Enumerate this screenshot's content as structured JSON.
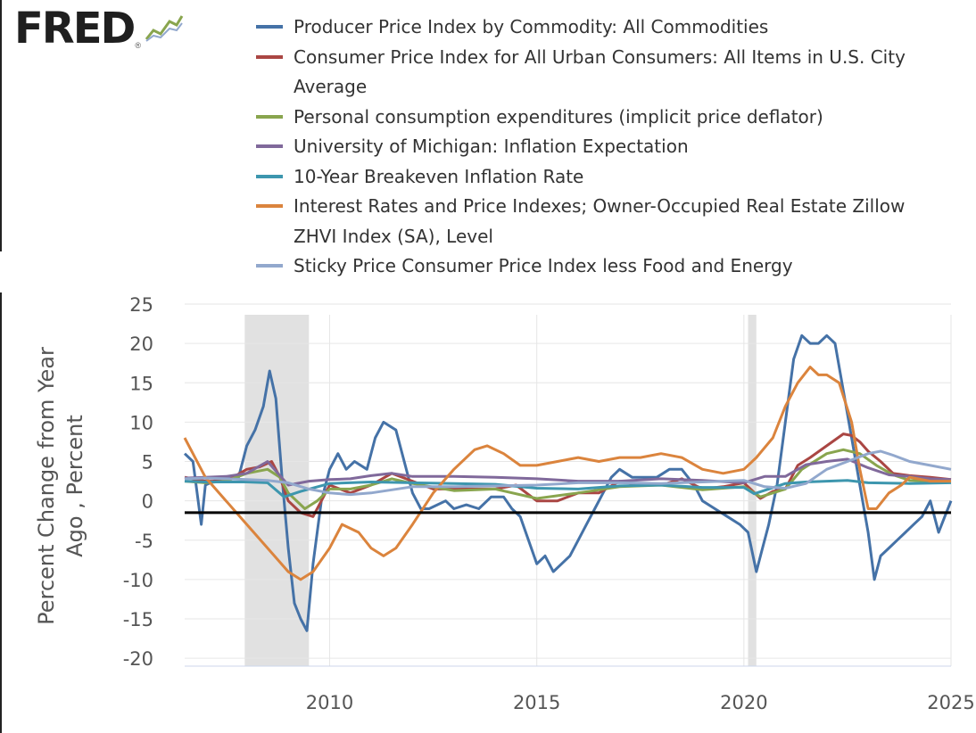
{
  "logo": {
    "text": "FRED",
    "registered": "®",
    "icon": "line-chart-icon"
  },
  "colors": {
    "ppi": "#4572a7",
    "cpi": "#aa4643",
    "pce": "#89a54e",
    "umich": "#80699b",
    "breakeven": "#3d96ae",
    "zillow": "#db843d",
    "sticky": "#92a8cd",
    "recession": "#e1e1e1",
    "grid": "#e6e6e6",
    "zero": "#000000"
  },
  "legend": [
    {
      "key": "ppi",
      "label": "Producer Price Index by Commodity: All Commodities"
    },
    {
      "key": "cpi",
      "label": "Consumer Price Index for All Urban Consumers: All Items in U.S. City Average"
    },
    {
      "key": "pce",
      "label": "Personal consumption expenditures (implicit price deflator)"
    },
    {
      "key": "umich",
      "label": "University of Michigan: Inflation Expectation"
    },
    {
      "key": "breakeven",
      "label": "10-Year Breakeven Inflation Rate"
    },
    {
      "key": "zillow",
      "label": "Interest Rates and Price Indexes; Owner-Occupied Real Estate Zillow ZHVI Index (SA), Level"
    },
    {
      "key": "sticky",
      "label": "Sticky Price Consumer Price Index less Food and Energy"
    }
  ],
  "chart_data": {
    "type": "line",
    "title": "",
    "xlabel": "",
    "ylabel": "Percent Change from Year Ago , Percent",
    "xlim": [
      2006.5,
      2025.0
    ],
    "ylim": [
      -21,
      25
    ],
    "xticks": [
      2010,
      2015,
      2020,
      2025
    ],
    "xtick_labels": [
      "2010",
      "2015",
      "2020",
      "2025"
    ],
    "yticks": [
      -20,
      -15,
      -10,
      -5,
      0,
      5,
      10,
      15,
      20,
      25
    ],
    "ytick_labels": [
      "-20",
      "-15",
      "-10",
      "-5",
      "0",
      "5",
      "10",
      "15",
      "20",
      "25"
    ],
    "grid": true,
    "reference_line_y": -1.5,
    "recessions": [
      [
        2007.95,
        2009.5
      ],
      [
        2020.1,
        2020.3
      ]
    ],
    "series": [
      {
        "key": "ppi",
        "name": "Producer Price Index by Commodity: All Commodities",
        "x": [
          2006.5,
          2006.7,
          2006.9,
          2007.0,
          2007.2,
          2007.5,
          2007.8,
          2008.0,
          2008.2,
          2008.4,
          2008.55,
          2008.7,
          2008.85,
          2009.0,
          2009.15,
          2009.3,
          2009.45,
          2009.6,
          2009.8,
          2010.0,
          2010.2,
          2010.4,
          2010.6,
          2010.9,
          2011.1,
          2011.3,
          2011.6,
          2011.8,
          2012.0,
          2012.2,
          2012.4,
          2012.6,
          2012.8,
          2013.0,
          2013.3,
          2013.6,
          2013.9,
          2014.2,
          2014.4,
          2014.6,
          2014.8,
          2015.0,
          2015.2,
          2015.4,
          2015.6,
          2015.8,
          2016.0,
          2016.2,
          2016.4,
          2016.6,
          2016.8,
          2017.0,
          2017.3,
          2017.6,
          2017.9,
          2018.2,
          2018.5,
          2018.8,
          2019.0,
          2019.3,
          2019.6,
          2019.9,
          2020.1,
          2020.3,
          2020.45,
          2020.6,
          2020.8,
          2021.0,
          2021.2,
          2021.4,
          2021.6,
          2021.8,
          2022.0,
          2022.2,
          2022.4,
          2022.6,
          2022.8,
          2023.0,
          2023.15,
          2023.3,
          2023.5,
          2023.7,
          2023.9,
          2024.1,
          2024.3,
          2024.5,
          2024.7,
          2024.85,
          2025.0
        ],
        "values": [
          6,
          5,
          -3,
          2,
          2.5,
          3,
          3,
          7,
          9,
          12,
          16.5,
          13,
          3,
          -6,
          -13,
          -15,
          -16.5,
          -8,
          0,
          4,
          6,
          4,
          5,
          4,
          8,
          10,
          9,
          5,
          1,
          -1,
          -1,
          -0.5,
          0,
          -1,
          -0.5,
          -1,
          0.5,
          0.5,
          -1,
          -2,
          -5,
          -8,
          -7,
          -9,
          -8,
          -7,
          -5,
          -3,
          -1,
          1,
          3,
          4,
          3,
          3,
          3,
          4,
          4,
          2,
          0,
          -1,
          -2,
          -3,
          -4,
          -9,
          -6,
          -3,
          2,
          10,
          18,
          21,
          20,
          20,
          21,
          20,
          14,
          8,
          2,
          -4,
          -10,
          -7,
          -6,
          -5,
          -4,
          -3,
          -2,
          0,
          -4,
          -2,
          0
        ]
      },
      {
        "key": "cpi",
        "name": "Consumer Price Index for All Urban Consumers",
        "x": [
          2006.5,
          2007.0,
          2007.5,
          2008.0,
          2008.3,
          2008.6,
          2008.8,
          2009.0,
          2009.3,
          2009.6,
          2009.8,
          2010.0,
          2010.5,
          2011.0,
          2011.5,
          2012.0,
          2012.5,
          2013.0,
          2013.5,
          2014.0,
          2014.5,
          2015.0,
          2015.5,
          2016.0,
          2016.5,
          2017.0,
          2017.5,
          2018.0,
          2018.5,
          2019.0,
          2019.5,
          2020.0,
          2020.4,
          2020.7,
          2021.0,
          2021.3,
          2021.6,
          2022.0,
          2022.4,
          2022.6,
          2022.8,
          2023.0,
          2023.3,
          2023.6,
          2024.0,
          2024.5,
          2025.0
        ],
        "values": [
          3,
          2.5,
          2.5,
          4,
          4.3,
          5,
          3,
          0,
          -1.5,
          -2,
          0,
          2,
          1,
          2,
          3.5,
          2.5,
          1.5,
          1.5,
          1.5,
          1.5,
          2,
          0,
          0,
          1,
          1,
          2.5,
          2,
          2,
          2.8,
          1.5,
          1.8,
          2.3,
          0.3,
          1.2,
          1.5,
          4.5,
          5.5,
          7,
          8.5,
          8.3,
          7.5,
          6.3,
          5,
          3.5,
          3.2,
          3,
          2.7
        ]
      },
      {
        "key": "pce",
        "name": "Personal consumption expenditures (implicit price deflator)",
        "x": [
          2006.5,
          2007.0,
          2007.5,
          2008.0,
          2008.5,
          2008.8,
          2009.0,
          2009.4,
          2009.7,
          2010.0,
          2010.5,
          2011.0,
          2011.5,
          2012.0,
          2013.0,
          2014.0,
          2015.0,
          2016.0,
          2017.0,
          2018.0,
          2019.0,
          2020.0,
          2020.4,
          2021.0,
          2021.4,
          2022.0,
          2022.4,
          2022.8,
          2023.2,
          2023.6,
          2024.0,
          2024.5,
          2025.0
        ],
        "values": [
          2.5,
          2.3,
          2.5,
          3.5,
          4,
          3,
          1,
          -1,
          0,
          1.5,
          1.5,
          2,
          2.8,
          2.2,
          1.3,
          1.5,
          0.3,
          1,
          1.8,
          2,
          1.4,
          1.8,
          0.5,
          1.5,
          4,
          6,
          6.5,
          6,
          4.5,
          3.3,
          2.6,
          2.5,
          2.4
        ]
      },
      {
        "key": "umich",
        "name": "University of Michigan: Inflation Expectation",
        "x": [
          2006.5,
          2007.0,
          2007.5,
          2008.0,
          2008.5,
          2009.0,
          2009.5,
          2010.0,
          2010.5,
          2011.0,
          2011.5,
          2012.0,
          2013.0,
          2014.0,
          2015.0,
          2016.0,
          2017.0,
          2018.0,
          2019.0,
          2020.0,
          2020.5,
          2021.0,
          2021.5,
          2022.0,
          2022.5,
          2023.0,
          2023.5,
          2024.0,
          2024.5,
          2025.0
        ],
        "values": [
          2.9,
          3,
          3.1,
          3.5,
          5,
          2,
          2.5,
          2.7,
          2.8,
          3.2,
          3.5,
          3.1,
          3.1,
          3,
          2.8,
          2.5,
          2.5,
          2.8,
          2.6,
          2.3,
          3.1,
          3.1,
          4.6,
          5,
          5.3,
          4.2,
          3.3,
          3.1,
          2.8,
          2.7
        ]
      },
      {
        "key": "breakeven",
        "name": "10-Year Breakeven Inflation Rate",
        "x": [
          2006.5,
          2007.0,
          2008.0,
          2008.5,
          2008.9,
          2009.3,
          2010.0,
          2011.0,
          2012.0,
          2013.0,
          2014.0,
          2015.0,
          2016.0,
          2017.0,
          2018.0,
          2019.0,
          2020.0,
          2020.25,
          2020.6,
          2021.0,
          2021.5,
          2022.0,
          2022.5,
          2023.0,
          2024.0,
          2025.0
        ],
        "values": [
          2.5,
          2.4,
          2.4,
          2.3,
          0.5,
          1.2,
          2.2,
          2.4,
          2.3,
          2.2,
          2.1,
          1.6,
          1.5,
          1.9,
          2,
          1.7,
          1.7,
          0.9,
          1.5,
          2.2,
          2.4,
          2.5,
          2.6,
          2.3,
          2.2,
          2.3
        ]
      },
      {
        "key": "zillow",
        "name": "Owner-Occupied Real Estate Zillow ZHVI Index (SA), Level",
        "x": [
          2006.5,
          2007.0,
          2007.5,
          2008.0,
          2008.5,
          2009.0,
          2009.3,
          2009.6,
          2010.0,
          2010.3,
          2010.7,
          2011.0,
          2011.3,
          2011.6,
          2012.0,
          2012.5,
          2013.0,
          2013.5,
          2013.8,
          2014.2,
          2014.6,
          2015.0,
          2015.5,
          2016.0,
          2016.5,
          2017.0,
          2017.5,
          2018.0,
          2018.5,
          2019.0,
          2019.5,
          2020.0,
          2020.3,
          2020.7,
          2021.0,
          2021.3,
          2021.6,
          2021.8,
          2022.0,
          2022.3,
          2022.6,
          2022.8,
          2023.0,
          2023.2,
          2023.5,
          2023.8,
          2024.0,
          2024.5,
          2025.0
        ],
        "values": [
          8,
          3,
          0,
          -3,
          -6,
          -9,
          -10,
          -9,
          -6,
          -3,
          -4,
          -6,
          -7,
          -6,
          -3,
          1,
          4,
          6.5,
          7,
          6,
          4.5,
          4.5,
          5,
          5.5,
          5,
          5.5,
          5.5,
          6,
          5.5,
          4,
          3.5,
          4,
          5.5,
          8,
          12,
          15,
          17,
          16,
          16,
          15,
          10,
          4,
          -1,
          -1,
          1,
          2,
          3,
          2.5,
          2.5
        ]
      },
      {
        "key": "sticky",
        "name": "Sticky Price Consumer Price Index less Food and Energy",
        "x": [
          2006.5,
          2007.0,
          2007.5,
          2008.0,
          2008.5,
          2009.0,
          2009.5,
          2010.0,
          2010.5,
          2011.0,
          2012.0,
          2013.0,
          2014.0,
          2015.0,
          2016.0,
          2017.0,
          2018.0,
          2019.0,
          2020.0,
          2020.5,
          2021.0,
          2021.5,
          2022.0,
          2022.5,
          2023.0,
          2023.3,
          2023.6,
          2024.0,
          2024.5,
          2025.0
        ],
        "values": [
          2.8,
          2.9,
          2.8,
          2.7,
          2.6,
          2.3,
          1.5,
          1,
          0.8,
          1,
          1.8,
          1.8,
          1.9,
          2,
          2.3,
          2.3,
          2.2,
          2.4,
          2.6,
          1.8,
          1.6,
          2.2,
          4,
          5,
          6,
          6.3,
          5.8,
          5,
          4.5,
          4
        ]
      }
    ]
  }
}
